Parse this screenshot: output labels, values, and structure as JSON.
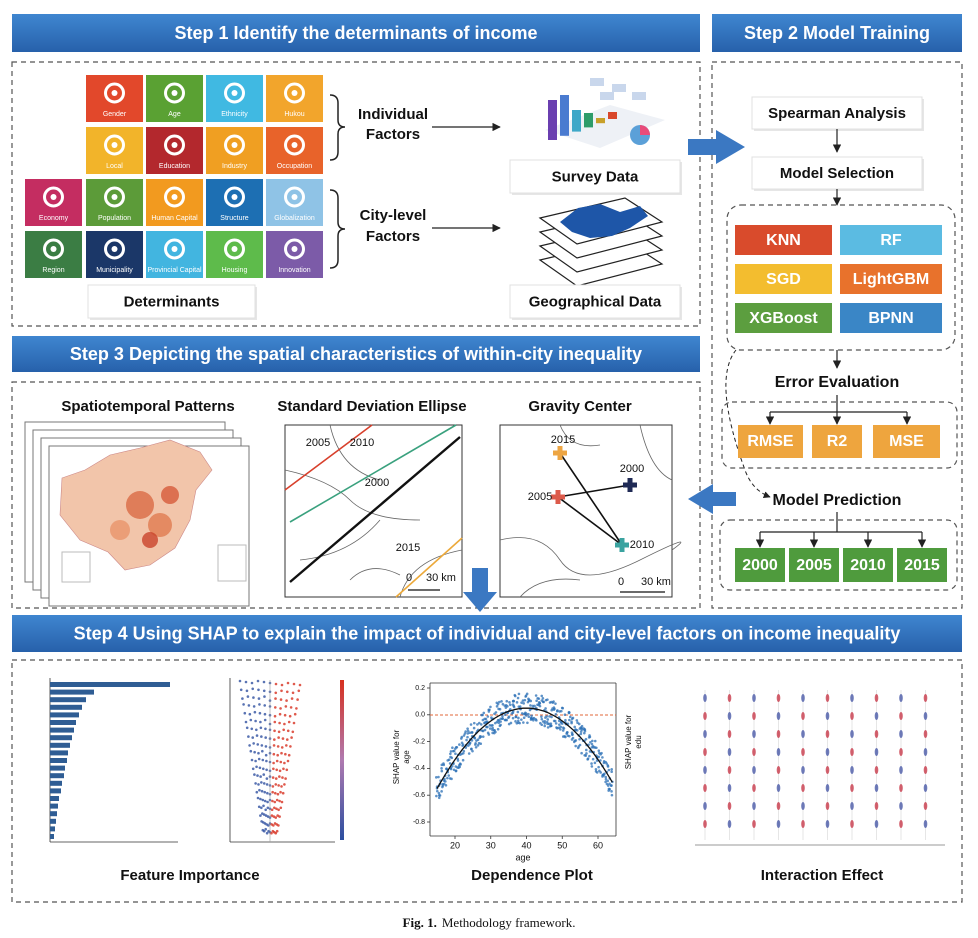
{
  "step1": {
    "title": "Step 1 Identify the determinants of income",
    "tiles": [
      {
        "label": "Gender"
      },
      {
        "label": "Age"
      },
      {
        "label": "Ethnicity"
      },
      {
        "label": "Hukou"
      },
      {
        "label": "Local"
      },
      {
        "label": "Education"
      },
      {
        "label": "Industry"
      },
      {
        "label": "Occupation"
      },
      {
        "label": "Economy"
      },
      {
        "label": "Population"
      },
      {
        "label": "Human Capital"
      },
      {
        "label": "Structure"
      },
      {
        "label": "Globalization"
      },
      {
        "label": "Region"
      },
      {
        "label": "Municipality"
      },
      {
        "label": "Provincial Capital"
      },
      {
        "label": "Housing"
      },
      {
        "label": "Innovation"
      }
    ],
    "determinants": "Determinants",
    "individual_factors": [
      "Individual",
      "Factors"
    ],
    "city_factors": [
      "City-level",
      "Factors"
    ],
    "survey_data": "Survey Data",
    "geographical_data": "Geographical Data"
  },
  "step2": {
    "title": "Step 2 Model Training",
    "spearman": "Spearman Analysis",
    "model_selection": "Model Selection",
    "models": [
      "KNN",
      "RF",
      "SGD",
      "LightGBM",
      "XGBoost",
      "BPNN"
    ],
    "error_evaluation": "Error Evaluation",
    "metrics": [
      "RMSE",
      "R2",
      "MSE"
    ],
    "model_prediction": "Model Prediction",
    "years": [
      "2000",
      "2005",
      "2010",
      "2015"
    ]
  },
  "step3": {
    "title": "Step 3 Depicting the spatial characteristics of within-city inequality",
    "panels": [
      "Spatiotemporal Patterns",
      "Standard Deviation Ellipse",
      "Gravity Center"
    ],
    "ellipse_years": [
      "2005",
      "2010",
      "2000",
      "2015"
    ],
    "gravity_years": [
      "2015",
      "2000",
      "2005",
      "2010"
    ],
    "scale": [
      "0",
      "30 km"
    ]
  },
  "step4": {
    "title": "Step 4 Using SHAP to explain the impact of individual and city-level factors on income inequality",
    "panels": [
      "Feature Importance",
      "Dependence Plot",
      "Interaction Effect"
    ],
    "dependence": {
      "yticks": [
        "0.2",
        "0.0",
        "-0.2",
        "-0.4",
        "-0.6",
        "-0.8"
      ],
      "xticks": [
        "20",
        "30",
        "40",
        "50",
        "60"
      ],
      "xlabel": "age",
      "ylabel": [
        "SHAP value for",
        "age"
      ],
      "y2label": [
        "SHAP value for",
        "edu"
      ]
    }
  },
  "caption": {
    "label": "Fig. 1.",
    "text": "Methodology framework."
  }
}
